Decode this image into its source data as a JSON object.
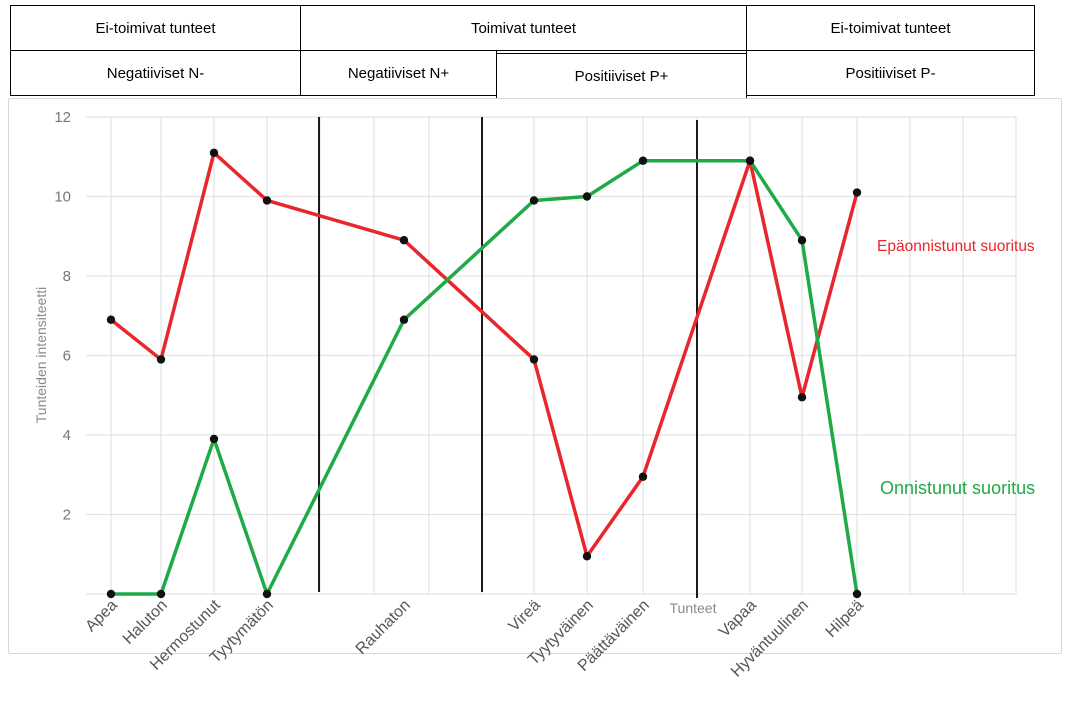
{
  "header": {
    "row1": [
      "Ei-toimivat tunteet",
      "Toimivat tunteet",
      "Ei-toimivat tunteet"
    ],
    "row2": [
      "Negatiiviset N-",
      "Negatiiviset N+",
      "Positiiviset P+",
      "Positiiviset P-"
    ]
  },
  "chart_data": {
    "type": "line",
    "categories": [
      "Apea",
      "Haluton",
      "Hermostunut",
      "Tyytymätön",
      "Rauhaton",
      "Vireä",
      "Tyytyväinen",
      "Päättäväinen",
      "Vapaa",
      "Hyväntuulinen",
      "Hilpeä"
    ],
    "xlabel": "Tunteet",
    "ylabel": "Tunteiden intensiteetti",
    "ylim": [
      0,
      12
    ],
    "yticks": [
      2,
      4,
      6,
      8,
      10,
      12
    ],
    "grid": true,
    "series": [
      {
        "name": "Epäonnistunut suoritus",
        "color": "#e8262b",
        "points": [
          {
            "x": "Apea",
            "y": 6.9
          },
          {
            "x": "Haluton",
            "y": 5.9
          },
          {
            "x": "Hermostunut",
            "y": 11.1
          },
          {
            "x": "Tyytymätön",
            "y": 9.9
          },
          {
            "x": "Rauhaton",
            "y": 8.9
          },
          {
            "x": "Vireä",
            "y": 5.9
          },
          {
            "x": "Tyytyväinen",
            "y": 0.95
          },
          {
            "x": "Päättäväinen",
            "y": 2.95
          },
          {
            "x": "Vapaa",
            "y": 10.9
          },
          {
            "x": "Hyväntuulinen",
            "y": 4.95
          },
          {
            "x": "Hilpeä",
            "y": 10.1
          }
        ]
      },
      {
        "name": "Onnistunut suoritus",
        "color": "#1faa48",
        "points": [
          {
            "x": "Apea",
            "y": 0
          },
          {
            "x": "Haluton",
            "y": 0
          },
          {
            "x": "Hermostunut",
            "y": 3.9
          },
          {
            "x": "Tyytymätön",
            "y": 0
          },
          {
            "x": "Rauhaton",
            "y": 6.9
          },
          {
            "x": "Vireä",
            "y": 9.9
          },
          {
            "x": "Tyytyväinen",
            "y": 10
          },
          {
            "x": "Päättäväinen",
            "y": 10.9
          },
          {
            "x": "Vapaa",
            "y": 10.9
          },
          {
            "x": "Hyväntuulinen",
            "y": 8.9
          },
          {
            "x": "Hilpeä",
            "y": 0
          }
        ]
      }
    ]
  }
}
